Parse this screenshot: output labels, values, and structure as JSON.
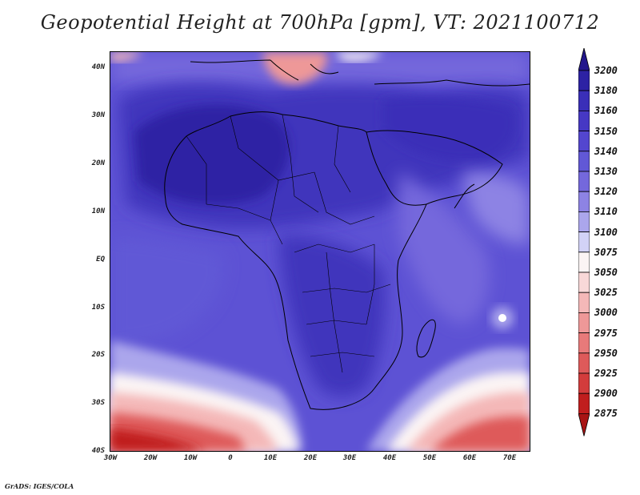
{
  "title": "Geopotential Height at 700hPa [gpm], VT: 2021100712",
  "footer": "GrADS: IGES/COLA",
  "lat_labels": [
    "40N",
    "30N",
    "20N",
    "10N",
    "EQ",
    "10S",
    "20S",
    "30S",
    "40S"
  ],
  "lon_labels": [
    "30W",
    "20W",
    "10W",
    "0",
    "10E",
    "20E",
    "30E",
    "40E",
    "50E",
    "60E",
    "70E"
  ],
  "colorbar": {
    "labels": [
      "3200",
      "3180",
      "3160",
      "3150",
      "3140",
      "3130",
      "3120",
      "3110",
      "3100",
      "3075",
      "3050",
      "3025",
      "3000",
      "2975",
      "2950",
      "2925",
      "2900",
      "2875"
    ],
    "colors": [
      "#23178c",
      "#2d22a4",
      "#3a2fb8",
      "#4638c4",
      "#5346cf",
      "#6158d6",
      "#7468dc",
      "#8d83e4",
      "#aba6ec",
      "#d2d2f6",
      "#fbf4f4",
      "#f8d8d8",
      "#f4b8b8",
      "#ee9898",
      "#e87a7a",
      "#de5a5a",
      "#d33c3c",
      "#c01e1e",
      "#a81414"
    ]
  },
  "map_colors": {
    "ocean_base": "#5d52d4",
    "continent_high": "#3f34bc",
    "sahara_core": "#2d22a4",
    "east_africa_low": "#7468dc",
    "madagascar_ring": "#aba6ec",
    "south_warm": "#f4b8b8",
    "south_hot": "#de5a5a",
    "mediterranean_low": "#ee9898"
  }
}
